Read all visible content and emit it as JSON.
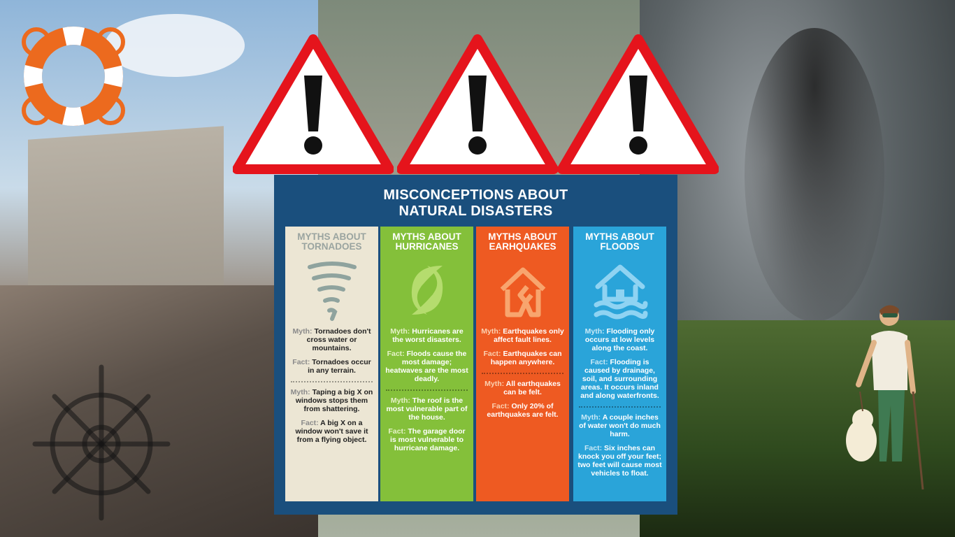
{
  "poster": {
    "title_line1": "MISCONCEPTIONS ABOUT",
    "title_line2": "NATURAL DISASTERS",
    "columns": [
      {
        "head_line1": "MYTHS ABOUT",
        "head_line2": "TORNADOES",
        "icon": "tornado-icon",
        "items": [
          {
            "k": "Myth:",
            "t": "Tornadoes don't cross water or mountains."
          },
          {
            "k": "Fact:",
            "t": "Tornadoes occur in any terrain."
          },
          {
            "k": "Myth:",
            "t": "Taping a big X on windows stops them from shattering."
          },
          {
            "k": "Fact:",
            "t": "A big X on a window won't save it from a flying object."
          }
        ]
      },
      {
        "head_line1": "MYTHS ABOUT",
        "head_line2": "HURRICANES",
        "icon": "hurricane-icon",
        "items": [
          {
            "k": "Myth:",
            "t": "Hurricanes are the worst disasters."
          },
          {
            "k": "Fact:",
            "t": "Floods cause the most damage; heatwaves are the most deadly."
          },
          {
            "k": "Myth:",
            "t": "The roof is the most vulnerable part of the house."
          },
          {
            "k": "Fact:",
            "t": "The garage door is most vulnerable to hurricane damage."
          }
        ]
      },
      {
        "head_line1": "MYTHS ABOUT",
        "head_line2": "EARHQUAKES",
        "icon": "earthquake-house-icon",
        "items": [
          {
            "k": "Myth:",
            "t": "Earthquakes only affect fault lines."
          },
          {
            "k": "Fact:",
            "t": "Earthquakes can happen anywhere."
          },
          {
            "k": "Myth:",
            "t": "All earthquakes can be felt."
          },
          {
            "k": "Fact:",
            "t": "Only 20% of earthquakes are felt."
          }
        ]
      },
      {
        "head_line1": "MYTHS ABOUT",
        "head_line2": "FLOODS",
        "icon": "flood-house-icon",
        "items": [
          {
            "k": "Myth:",
            "t": "Flooding only occurs at low levels along the coast."
          },
          {
            "k": "Fact:",
            "t": "Flooding is caused by drainage, soil, and surrounding areas. It occurs inland and along waterfronts."
          },
          {
            "k": "Myth:",
            "t": "A couple inches of water won't do much harm."
          },
          {
            "k": "Fact:",
            "t": "Six inches can knock you off your feet; two feet will cause most vehicles to float."
          }
        ]
      }
    ]
  },
  "colors": {
    "poster_bg": "#1a4f7d",
    "tornado": "#ece6d4",
    "hurricane": "#84c03a",
    "earthquake": "#ee5a22",
    "flood": "#2aa4d9",
    "warning_red": "#e5141c",
    "lifebuoy_orange": "#ec6a1e"
  }
}
